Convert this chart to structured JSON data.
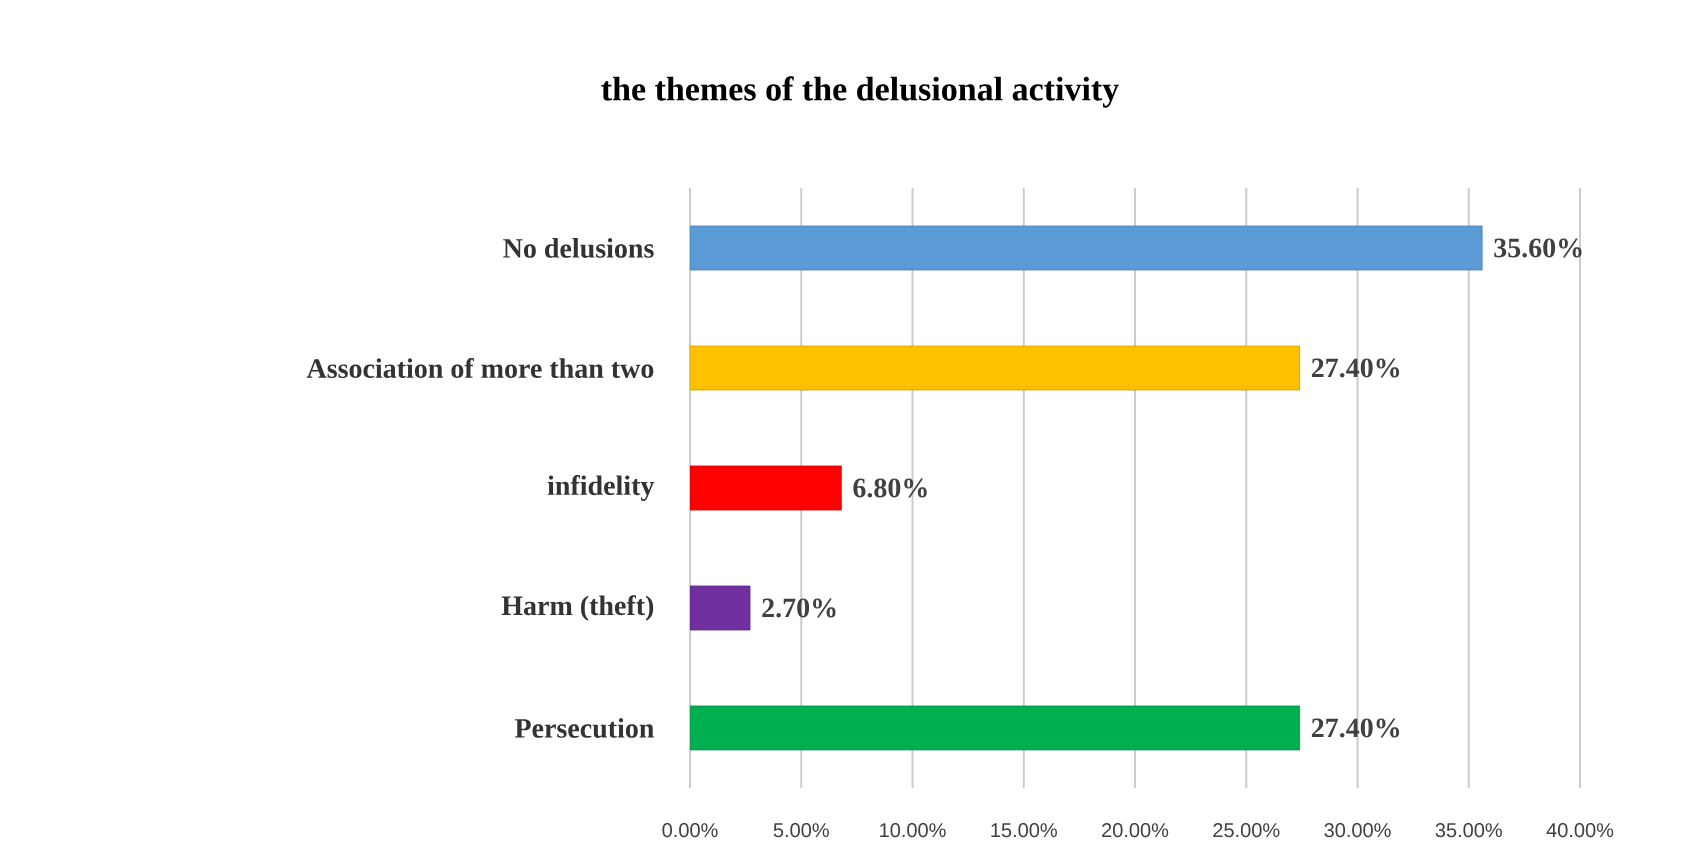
{
  "chart_data": {
    "type": "bar",
    "orientation": "horizontal",
    "title": "the themes of the delusional activity",
    "categories": [
      "No delusions",
      "Association of more than two",
      "infidelity",
      "Harm (theft)",
      "Persecution"
    ],
    "values": [
      35.6,
      27.4,
      6.8,
      2.7,
      27.4
    ],
    "colors": [
      "#5b9bd5",
      "#ffc000",
      "#ff0000",
      "#7030a0",
      "#00b050"
    ],
    "value_labels": [
      "35.60%",
      "27.40%",
      "6.80%",
      "2.70%",
      "27.40%"
    ],
    "xlim": [
      0,
      40
    ],
    "xticks": [
      {
        "value": 0,
        "label": "0.00%"
      },
      {
        "value": 5,
        "label": "5.00%"
      },
      {
        "value": 10,
        "label": "10.00%"
      },
      {
        "value": 15,
        "label": "15.00%"
      },
      {
        "value": 20,
        "label": "20.00%"
      },
      {
        "value": 25,
        "label": "25.00%"
      },
      {
        "value": 30,
        "label": "30.00%"
      },
      {
        "value": 35,
        "label": "35.00%"
      },
      {
        "value": 40,
        "label": "40.00%"
      }
    ],
    "grid": "x"
  }
}
